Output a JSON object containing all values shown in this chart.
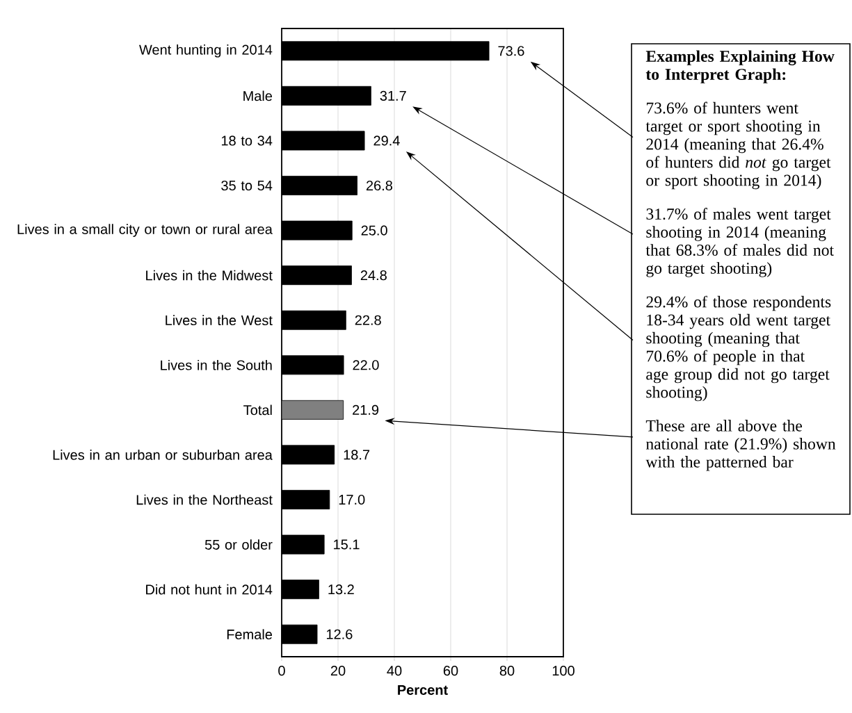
{
  "chart_data": {
    "type": "bar",
    "orientation": "horizontal",
    "xlabel": "Percent",
    "categories": [
      "Went hunting in 2014",
      "Male",
      "18 to 34",
      "35 to 54",
      "Lives in a small city or town or rural area",
      "Lives in the Midwest",
      "Lives in the West",
      "Lives in the South",
      "Total",
      "Lives in an urban or suburban area",
      "Lives in the Northeast",
      "55 or older",
      "Did not hunt in 2014",
      "Female"
    ],
    "values": [
      73.6,
      31.7,
      29.4,
      26.8,
      25.0,
      24.8,
      22.8,
      22.0,
      21.9,
      18.7,
      17.0,
      15.1,
      13.2,
      12.6
    ],
    "value_labels": [
      "73.6",
      "31.7",
      "29.4",
      "26.8",
      "25.0",
      "24.8",
      "22.8",
      "22.0",
      "21.9",
      "18.7",
      "17.0",
      "15.1",
      "13.2",
      "12.6"
    ],
    "colors": [
      "#000000",
      "#000000",
      "#000000",
      "#000000",
      "#000000",
      "#000000",
      "#000000",
      "#000000",
      "#808080",
      "#000000",
      "#000000",
      "#000000",
      "#000000",
      "#000000"
    ],
    "xlim": [
      0,
      100
    ],
    "xticks": [
      0,
      20,
      40,
      60,
      80,
      100
    ],
    "grid": "x",
    "annotations": [
      "**Examples Explaining How to Interpret Graph:**",
      "73.6% of hunters went target or sport shooting in 2014 (meaning that 26.4% of hunters did *not* go target or sport shooting in 2014)",
      "31.7% of males went target shooting in 2014 (meaning that 68.3% of males did not go target shooting)",
      "29.4% of those respondents 18-34 years old went target shooting (meaning that 70.6% of people in that age group did not go target shooting)",
      "These are all above the national rate (21.9%) shown with the patterned bar"
    ]
  }
}
